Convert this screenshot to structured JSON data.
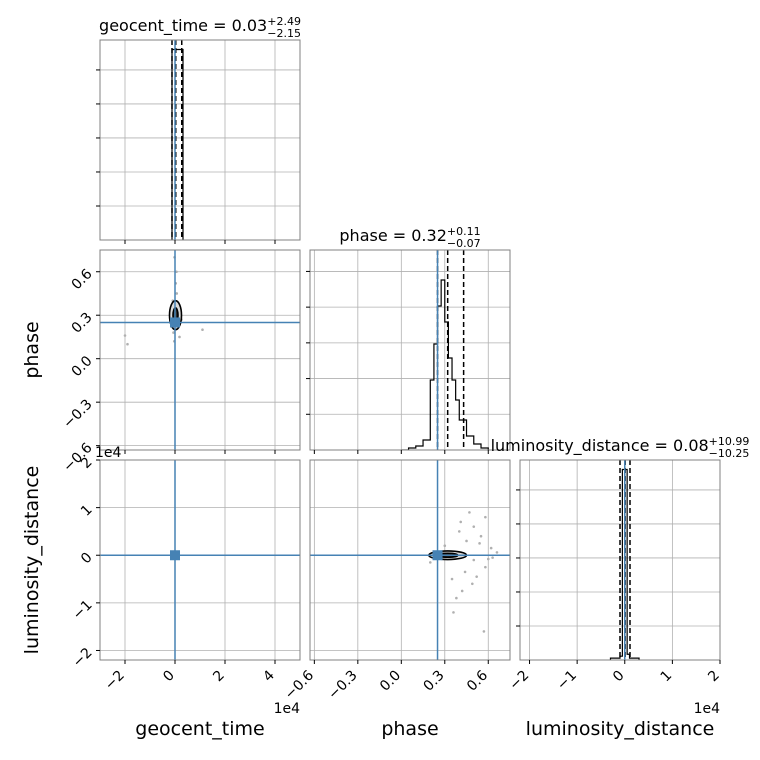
{
  "figure": {
    "type": "corner-plot"
  },
  "colors": {
    "truth": "#4682b4",
    "hist": "#000000",
    "samples": "#b0b0b0",
    "grid": "#b0b0b0",
    "frame": "#808080"
  },
  "chart_data": {
    "type": "corner",
    "parameters": [
      "geocent_time",
      "phase",
      "luminosity_distance"
    ],
    "truths": {
      "geocent_time": 0.0,
      "phase": 0.25,
      "luminosity_distance": 0.0
    },
    "axes": {
      "geocent_time": {
        "range": [
          -30000,
          50000
        ],
        "ticks": [
          -20000,
          0,
          20000,
          40000
        ],
        "tick_labels": [
          "−2",
          "0",
          "2",
          "4"
        ],
        "offset_label": "1e4"
      },
      "phase": {
        "range": [
          -0.63,
          0.75
        ],
        "ticks": [
          -0.6,
          -0.3,
          0.0,
          0.3,
          0.6
        ],
        "tick_labels": [
          "−0.6",
          "−0.3",
          "0.0",
          "0.3",
          "0.6"
        ],
        "offset_label": ""
      },
      "luminosity_distance": {
        "range": [
          -22000,
          20000
        ],
        "ticks": [
          -20000,
          -10000,
          0,
          10000,
          20000
        ],
        "tick_labels": [
          "−2",
          "−1",
          "0",
          "1",
          "2"
        ],
        "offset_label": "1e4"
      }
    },
    "marginals": [
      {
        "parameter": "geocent_time",
        "title_name": "geocent_time",
        "median": "0.03",
        "plus": "+2.49",
        "minus": "−2.15",
        "quantile_lines": [
          -1200,
          300,
          2700
        ],
        "bin_edges": [
          -1200,
          0,
          3200
        ],
        "counts": [
          1.0,
          1.0
        ],
        "ylim": [
          0,
          1.05
        ]
      },
      {
        "parameter": "phase",
        "title_name": "phase",
        "median": "0.32",
        "plus": "+0.11",
        "minus": "−0.07",
        "quantile_lines": [
          0.25,
          0.32,
          0.43
        ],
        "bin_edges": [
          0.0,
          0.05,
          0.1,
          0.15,
          0.2,
          0.225,
          0.25,
          0.275,
          0.3,
          0.325,
          0.35,
          0.375,
          0.4,
          0.45,
          0.5,
          0.55,
          0.6
        ],
        "counts": [
          0.0,
          0.01,
          0.02,
          0.05,
          0.35,
          0.53,
          0.72,
          0.85,
          0.64,
          0.46,
          0.35,
          0.25,
          0.15,
          0.07,
          0.03,
          0.01
        ],
        "ylim": [
          0,
          1.0
        ]
      },
      {
        "parameter": "luminosity_distance",
        "title_name": "luminosity_distance",
        "median": "0.08",
        "plus": "+10.99",
        "minus": "−10.25",
        "quantile_lines": [
          -1000,
          80,
          1100
        ],
        "bin_edges": [
          -3000,
          -1000,
          -500,
          0,
          500,
          1000,
          3000
        ],
        "counts": [
          0.01,
          0.02,
          1.0,
          1.0,
          0.03,
          0.01
        ],
        "ylim": [
          0,
          1.05
        ]
      }
    ],
    "pairs": [
      {
        "x": "geocent_time",
        "y": "phase",
        "center": [
          200,
          0.3
        ],
        "contour_rx": [
          1000,
          2400
        ],
        "contour_ry": [
          0.05,
          0.1
        ],
        "samples": [
          [
            -600,
            0.18
          ],
          [
            900,
            0.22
          ],
          [
            1500,
            0.35
          ],
          [
            -900,
            0.4
          ],
          [
            300,
            0.52
          ],
          [
            -300,
            0.12
          ],
          [
            2600,
            0.27
          ],
          [
            11000,
            0.2
          ],
          [
            -19000,
            0.1
          ],
          [
            -20000,
            0.16
          ],
          [
            700,
            0.45
          ],
          [
            -1500,
            0.28
          ],
          [
            1800,
            0.15
          ],
          [
            600,
            0.6
          ],
          [
            -200,
            0.7
          ]
        ]
      },
      {
        "x": "geocent_time",
        "y": "luminosity_distance",
        "center": [
          100,
          0
        ],
        "contour_rx": [
          800,
          1600
        ],
        "contour_ry": [
          200,
          400
        ],
        "samples": [
          [
            -500,
            200
          ],
          [
            600,
            -300
          ],
          [
            1200,
            100
          ],
          [
            -1000,
            -100
          ],
          [
            300,
            500
          ],
          [
            -200,
            -600
          ]
        ]
      },
      {
        "x": "phase",
        "y": "luminosity_distance",
        "center": [
          0.32,
          0
        ],
        "contour_rx": [
          0.07,
          0.13
        ],
        "contour_ry": [
          400,
          900
        ],
        "samples": [
          [
            0.42,
            -7500
          ],
          [
            0.38,
            -9000
          ],
          [
            0.5,
            6000
          ],
          [
            0.55,
            4000
          ],
          [
            0.58,
            -2500
          ],
          [
            0.2,
            -1500
          ],
          [
            0.45,
            3000
          ],
          [
            0.6,
            -800
          ],
          [
            0.52,
            -4500
          ],
          [
            0.47,
            9000
          ],
          [
            0.36,
            -12000
          ],
          [
            0.57,
            -16000
          ],
          [
            0.41,
            7000
          ],
          [
            0.62,
            1500
          ],
          [
            0.3,
            2000
          ],
          [
            0.49,
            -6000
          ],
          [
            0.54,
            2500
          ],
          [
            0.44,
            -3500
          ],
          [
            0.63,
            -500
          ],
          [
            0.4,
            5000
          ],
          [
            0.5,
            -1000
          ],
          [
            0.58,
            8000
          ],
          [
            0.35,
            -5000
          ],
          [
            0.66,
            600
          ]
        ]
      }
    ]
  }
}
